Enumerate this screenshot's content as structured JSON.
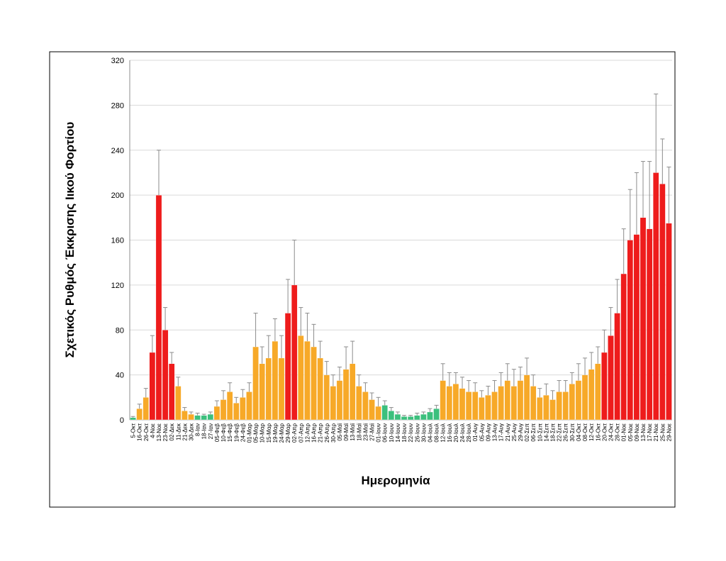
{
  "chart_data": {
    "type": "bar",
    "y_label": "Σχετικός Ρυθμός Έκκρισης Ιικού Φορτίου",
    "x_label": "Ημερομηνία",
    "categories": [
      "5-Οκτ",
      "16-Οκτ",
      "26-Οκτ",
      "4-Νοε",
      "13-Νοε",
      "23-Νοε",
      "02-Δεκ",
      "11-Δεκ",
      "21-Δεκ",
      "30-Δεκ",
      "8-Ιαν",
      "18-Ιαν",
      "27-Ιαν",
      "05-Φεβ",
      "10-Φεβ",
      "15-Φεβ",
      "19-Φεβ",
      "24-Φεβ",
      "01-Μαρ",
      "05-Μαρ",
      "10-Μαρ",
      "15-Μαρ",
      "19-Μαρ",
      "24-Μαρ",
      "29-Μαρ",
      "02-Απρ",
      "07-Απρ",
      "12-Απρ",
      "16-Απρ",
      "21-Απρ",
      "26-Απρ",
      "30-Απρ",
      "05-Μαϊ",
      "09-Μαϊ",
      "13-Μαϊ",
      "18-Μαϊ",
      "23-Μαϊ",
      "27-Μαϊ",
      "01-Ιουν",
      "06-Ιουν",
      "10-Ιουν",
      "14-Ιουν",
      "18-Ιουν",
      "22-Ιουν",
      "26-Ιουν",
      "30-Ιουν",
      "04-Ιουλ",
      "08-Ιουλ",
      "12-Ιουλ",
      "16-Ιουλ",
      "20-Ιουλ",
      "24-Ιουλ",
      "28-Ιουλ",
      "01-Αυγ",
      "05-Αυγ",
      "09-Αυγ",
      "13-Αυγ",
      "17-Αυγ",
      "21-Αυγ",
      "25-Αυγ",
      "29-Αυγ",
      "02-Σεπ",
      "06-Σεπ",
      "10-Σεπ",
      "14-Σεπ",
      "18-Σεπ",
      "22-Σεπ",
      "26-Σεπ",
      "30-Σεπ",
      "04-Οκτ",
      "08-Οκτ",
      "12-Οκτ",
      "16-Οκτ",
      "20-Οκτ",
      "24-Οκτ",
      "28-Οκτ",
      "01-Νοε",
      "05-Νοε",
      "09-Νοε",
      "13-Νοε",
      "17-Νοε",
      "21-Νοε",
      "25-Νοε",
      "29-Νοε"
    ],
    "values": [
      2,
      10,
      20,
      60,
      200,
      80,
      50,
      30,
      8,
      5,
      4,
      4,
      5,
      12,
      18,
      25,
      15,
      20,
      25,
      65,
      50,
      55,
      70,
      55,
      95,
      120,
      75,
      70,
      65,
      55,
      40,
      30,
      35,
      45,
      50,
      30,
      25,
      18,
      12,
      13,
      8,
      5,
      3,
      3,
      4,
      5,
      7,
      10,
      35,
      30,
      32,
      28,
      25,
      25,
      20,
      22,
      25,
      30,
      35,
      30,
      35,
      40,
      30,
      20,
      22,
      18,
      25,
      25,
      32,
      35,
      40,
      45,
      50,
      60,
      75,
      95,
      130,
      160,
      165,
      180,
      170,
      220,
      210,
      175
    ],
    "errors": [
      1,
      4,
      8,
      15,
      40,
      20,
      10,
      8,
      3,
      2,
      2,
      1,
      2,
      5,
      8,
      8,
      5,
      7,
      8,
      30,
      15,
      20,
      20,
      20,
      30,
      40,
      25,
      25,
      20,
      15,
      12,
      10,
      12,
      20,
      20,
      10,
      8,
      6,
      8,
      4,
      3,
      2,
      1,
      1,
      2,
      2,
      3,
      3,
      15,
      12,
      10,
      10,
      10,
      8,
      6,
      8,
      10,
      12,
      15,
      15,
      12,
      15,
      10,
      8,
      10,
      8,
      10,
      10,
      10,
      15,
      15,
      15,
      15,
      20,
      25,
      30,
      40,
      45,
      55,
      50,
      60,
      70,
      40,
      50
    ],
    "colors": [
      "#3cc07d",
      "#f7a928",
      "#f7a928",
      "#ee1c1c",
      "#ee1c1c",
      "#ee1c1c",
      "#ee1c1c",
      "#f7a928",
      "#f7a928",
      "#f7a928",
      "#3cc07d",
      "#3cc07d",
      "#3cc07d",
      "#f7a928",
      "#f7a928",
      "#f7a928",
      "#f7a928",
      "#f7a928",
      "#f7a928",
      "#f7a928",
      "#f7a928",
      "#f7a928",
      "#f7a928",
      "#f7a928",
      "#ee1c1c",
      "#ee1c1c",
      "#f7a928",
      "#f7a928",
      "#f7a928",
      "#f7a928",
      "#f7a928",
      "#f7a928",
      "#f7a928",
      "#f7a928",
      "#f7a928",
      "#f7a928",
      "#f7a928",
      "#f7a928",
      "#f7a928",
      "#3cc07d",
      "#3cc07d",
      "#3cc07d",
      "#3cc07d",
      "#3cc07d",
      "#3cc07d",
      "#3cc07d",
      "#3cc07d",
      "#3cc07d",
      "#f7a928",
      "#f7a928",
      "#f7a928",
      "#f7a928",
      "#f7a928",
      "#f7a928",
      "#f7a928",
      "#f7a928",
      "#f7a928",
      "#f7a928",
      "#f7a928",
      "#f7a928",
      "#f7a928",
      "#f7a928",
      "#f7a928",
      "#f7a928",
      "#f7a928",
      "#f7a928",
      "#f7a928",
      "#f7a928",
      "#f7a928",
      "#f7a928",
      "#f7a928",
      "#f7a928",
      "#f7a928",
      "#ee1c1c",
      "#ee1c1c",
      "#ee1c1c",
      "#ee1c1c",
      "#ee1c1c",
      "#ee1c1c",
      "#ee1c1c",
      "#ee1c1c",
      "#ee1c1c",
      "#ee1c1c",
      "#ee1c1c"
    ],
    "error_color": "#8c8c8c",
    "ylim": [
      0,
      320
    ],
    "yticks": [
      0,
      40,
      80,
      120,
      160,
      200,
      240,
      280,
      320
    ],
    "grid": true
  }
}
